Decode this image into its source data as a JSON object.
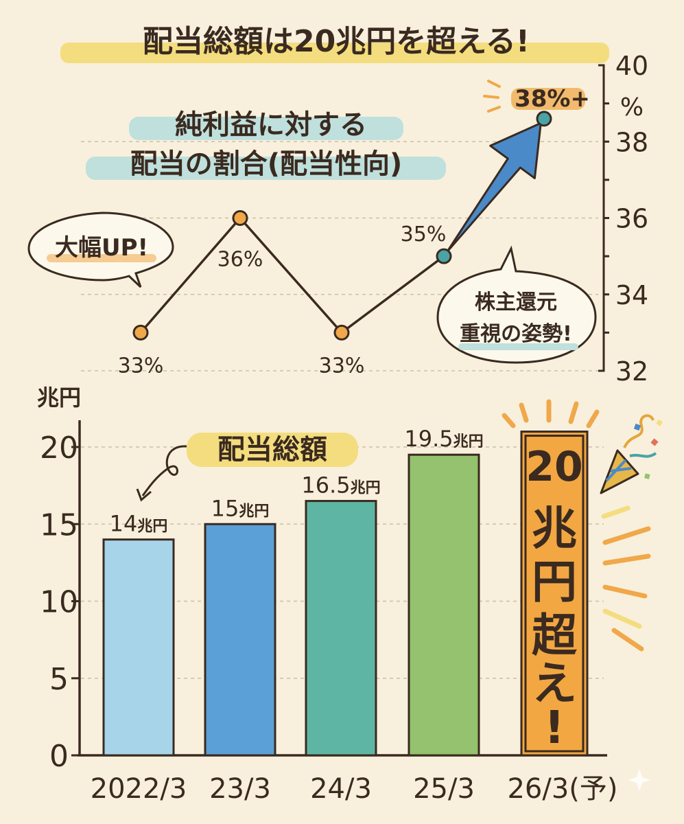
{
  "title": "配当総額は20兆円を超える!",
  "colors": {
    "background": "#f8f0dc",
    "ink": "#3a2a20",
    "highlight_yellow": "#f3dd7e",
    "highlight_teal": "#bfe0dc",
    "orange": "#f0a84a",
    "teal_dot": "#4aa3a6",
    "arrow_blue": "#4a8ac8"
  },
  "chart_data": [
    {
      "type": "line",
      "title": "純利益に対する配当の割合(配当性向)",
      "title_lines": [
        "純利益に対する",
        "配当の割合(配当性向)"
      ],
      "y_unit": "%",
      "ylim": [
        32,
        40
      ],
      "y_ticks": [
        32,
        34,
        36,
        38,
        40
      ],
      "y_tick_labels": [
        "32",
        "34",
        "36",
        "38",
        "40"
      ],
      "axis_position": "right",
      "grid": true,
      "points": [
        {
          "x": "2022/3",
          "y": 33,
          "label": "33%"
        },
        {
          "x": "23/3",
          "y": 36,
          "label": "36%"
        },
        {
          "x": "24/3",
          "y": 33,
          "label": "33%"
        },
        {
          "x": "25/3",
          "y": 35,
          "label": "35%"
        },
        {
          "x": "26/3(予)",
          "y": 38.6,
          "label": "38%+"
        }
      ],
      "annotations": {
        "bubble_left": "大幅UP!",
        "bubble_right_lines": [
          "株主還元",
          "重視の姿勢!"
        ]
      }
    },
    {
      "type": "bar",
      "title": "配当総額",
      "y_unit": "兆円",
      "ylim": [
        0,
        20
      ],
      "y_ticks": [
        0,
        5,
        10,
        15,
        20
      ],
      "y_tick_labels": [
        "0",
        "5",
        "10",
        "15",
        "20"
      ],
      "grid": true,
      "categories": [
        "2022/3",
        "23/3",
        "24/3",
        "25/3",
        "26/3(予)"
      ],
      "values": [
        14,
        15,
        16.5,
        19.5,
        21
      ],
      "value_labels": [
        {
          "num": "14",
          "unit": "兆円"
        },
        {
          "num": "15",
          "unit": "兆円"
        },
        {
          "num": "16.5",
          "unit": "兆円"
        },
        {
          "num": "19.5",
          "unit": "兆円"
        },
        {
          "num": "",
          "unit": ""
        }
      ],
      "bar_colors": [
        "#a8d4ea",
        "#5ba0d6",
        "#5fb5a3",
        "#94c26e",
        "#f2a742"
      ],
      "highlight_bar_text": [
        "20",
        "兆",
        "円",
        "超",
        "え",
        "!"
      ]
    }
  ]
}
